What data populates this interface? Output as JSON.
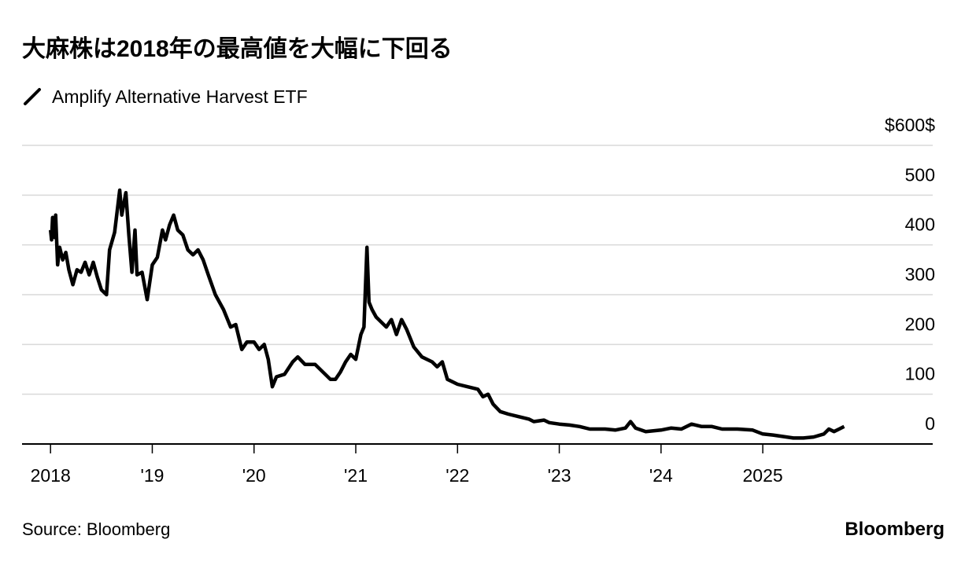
{
  "chart_data": {
    "type": "line",
    "title": "大麻株は2018年の最高値を大幅に下回る",
    "source": "Source: Bloomberg",
    "brand": "Bloomberg",
    "x": [
      2018.0,
      2018.01,
      2018.02,
      2018.04,
      2018.05,
      2018.07,
      2018.09,
      2018.12,
      2018.15,
      2018.18,
      2018.22,
      2018.26,
      2018.3,
      2018.34,
      2018.38,
      2018.42,
      2018.46,
      2018.5,
      2018.55,
      2018.58,
      2018.63,
      2018.68,
      2018.7,
      2018.74,
      2018.77,
      2018.8,
      2018.83,
      2018.85,
      2018.9,
      2018.95,
      2019.0,
      2019.05,
      2019.1,
      2019.13,
      2019.17,
      2019.21,
      2019.25,
      2019.3,
      2019.35,
      2019.4,
      2019.45,
      2019.5,
      2019.55,
      2019.62,
      2019.7,
      2019.77,
      2019.82,
      2019.88,
      2019.93,
      2020.0,
      2020.05,
      2020.1,
      2020.14,
      2020.18,
      2020.22,
      2020.3,
      2020.38,
      2020.43,
      2020.5,
      2020.6,
      2020.7,
      2020.75,
      2020.8,
      2020.85,
      2020.9,
      2020.95,
      2021.0,
      2021.05,
      2021.08,
      2021.11,
      2021.13,
      2021.16,
      2021.2,
      2021.3,
      2021.35,
      2021.4,
      2021.45,
      2021.5,
      2021.57,
      2021.65,
      2021.75,
      2021.8,
      2021.85,
      2021.9,
      2022.0,
      2022.1,
      2022.2,
      2022.25,
      2022.3,
      2022.35,
      2022.42,
      2022.5,
      2022.6,
      2022.7,
      2022.75,
      2022.85,
      2022.9,
      2023.0,
      2023.1,
      2023.2,
      2023.3,
      2023.45,
      2023.55,
      2023.65,
      2023.7,
      2023.75,
      2023.85,
      2024.0,
      2024.1,
      2024.2,
      2024.3,
      2024.4,
      2024.5,
      2024.6,
      2024.75,
      2024.9,
      2025.0,
      2025.1,
      2025.2,
      2025.3,
      2025.4,
      2025.5,
      2025.6,
      2025.65,
      2025.7,
      2025.75,
      2025.8
    ],
    "series": [
      {
        "name": "Amplify Alternative Harvest ETF",
        "color": "#000000",
        "values": [
          430,
          410,
          455,
          415,
          460,
          360,
          395,
          370,
          385,
          350,
          320,
          350,
          345,
          365,
          340,
          365,
          335,
          310,
          300,
          390,
          425,
          510,
          460,
          505,
          420,
          345,
          430,
          340,
          345,
          290,
          360,
          375,
          430,
          410,
          440,
          460,
          430,
          420,
          390,
          380,
          390,
          370,
          340,
          300,
          270,
          235,
          240,
          190,
          205,
          205,
          190,
          200,
          170,
          115,
          135,
          140,
          165,
          175,
          160,
          160,
          140,
          130,
          130,
          145,
          165,
          180,
          170,
          220,
          235,
          395,
          285,
          270,
          255,
          235,
          250,
          220,
          250,
          230,
          195,
          175,
          165,
          155,
          165,
          130,
          120,
          115,
          110,
          95,
          100,
          80,
          65,
          60,
          55,
          50,
          45,
          48,
          43,
          40,
          38,
          35,
          30,
          30,
          28,
          32,
          45,
          32,
          25,
          28,
          32,
          30,
          40,
          35,
          35,
          30,
          30,
          28,
          20,
          18,
          15,
          12,
          12,
          14,
          20,
          30,
          25,
          30,
          35
        ]
      }
    ],
    "xlim": [
      2017.72,
      2026.67
    ],
    "xticks": [
      2018,
      {
        "value": 2019,
        "label": "'19"
      },
      {
        "value": 2020,
        "label": "'20"
      },
      {
        "value": 2021,
        "label": "'21"
      },
      {
        "value": 2022,
        "label": "'22"
      },
      {
        "value": 2023,
        "label": "'23"
      },
      {
        "value": 2024,
        "label": "'24"
      },
      2025
    ],
    "ylim": [
      0,
      600
    ],
    "yticks": [
      0,
      100,
      200,
      300,
      400,
      500,
      {
        "value": 600,
        "label": "$600$"
      }
    ],
    "grid": true
  }
}
